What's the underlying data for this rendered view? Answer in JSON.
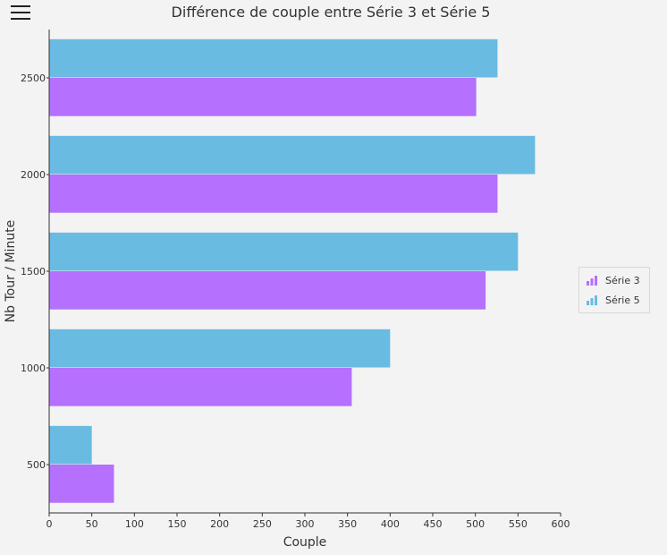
{
  "toolbar": {
    "menu_icon": "hamburger-menu-icon"
  },
  "chart_data": {
    "type": "bar",
    "orientation": "horizontal",
    "title": "Différence de couple entre Série 3 et Série 5",
    "xlabel": "Couple",
    "ylabel": "Nb Tour / Minute",
    "categories": [
      "500",
      "1000",
      "1500",
      "2000",
      "2500"
    ],
    "series": [
      {
        "name": "Série 3",
        "color": "#b570fd",
        "values": [
          76,
          355,
          512,
          526,
          501
        ]
      },
      {
        "name": "Série 5",
        "color": "#69bbe2",
        "values": [
          50,
          400,
          550,
          570,
          526
        ]
      }
    ],
    "xlim": [
      0,
      600
    ],
    "xticks": [
      "0",
      "50",
      "100",
      "150",
      "200",
      "250",
      "300",
      "350",
      "400",
      "450",
      "500",
      "550",
      "600"
    ],
    "legend_position": "right"
  }
}
